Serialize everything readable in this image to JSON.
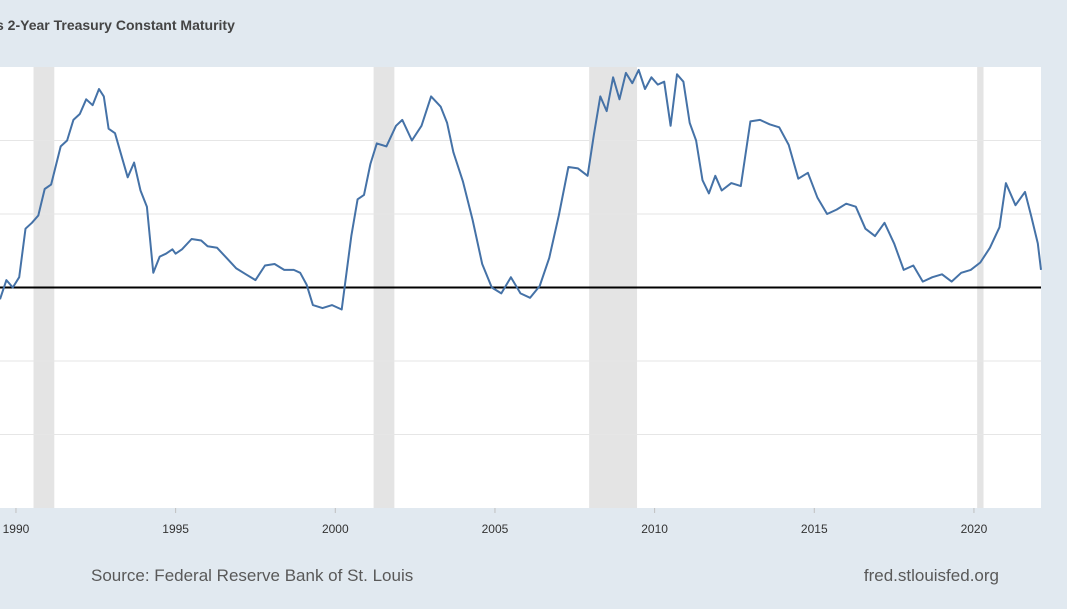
{
  "chart_data": {
    "type": "line",
    "title": "s 2-Year Treasury Constant Maturity",
    "xlabel": "",
    "ylabel": "",
    "x_ticks": [
      "1990",
      "1995",
      "2000",
      "2005",
      "2010",
      "2015",
      "2020"
    ],
    "xlim": [
      1989.5,
      2022.1
    ],
    "ylim": [
      -1.5,
      1.5
    ],
    "y_gridlines": [
      -1.0,
      -0.5,
      0.0,
      0.5,
      1.0
    ],
    "reference_line": 0.0,
    "grid": true,
    "legend": "none",
    "recessions": [
      [
        1990.55,
        1991.2
      ],
      [
        2001.2,
        2001.85
      ],
      [
        2007.95,
        2009.45
      ],
      [
        2020.1,
        2020.3
      ]
    ],
    "series": [
      {
        "color": "#4572a7",
        "x": [
          1989.5,
          1989.7,
          1989.9,
          1990.1,
          1990.3,
          1990.5,
          1990.7,
          1990.9,
          1991.1,
          1991.4,
          1991.6,
          1991.8,
          1992.0,
          1992.2,
          1992.4,
          1992.6,
          1992.75,
          1992.9,
          1993.1,
          1993.3,
          1993.5,
          1993.7,
          1993.9,
          1994.1,
          1994.3,
          1994.5,
          1994.7,
          1994.9,
          1995.0,
          1995.2,
          1995.5,
          1995.8,
          1996.0,
          1996.3,
          1996.6,
          1996.9,
          1997.2,
          1997.5,
          1997.8,
          1998.1,
          1998.4,
          1998.7,
          1998.9,
          1999.1,
          1999.3,
          1999.6,
          1999.9,
          2000.2,
          2000.5,
          2000.7,
          2000.9,
          2001.1,
          2001.3,
          2001.6,
          2001.9,
          2002.1,
          2002.4,
          2002.7,
          2003.0,
          2003.3,
          2003.5,
          2003.7,
          2004.0,
          2004.3,
          2004.6,
          2004.9,
          2005.2,
          2005.5,
          2005.8,
          2006.1,
          2006.4,
          2006.7,
          2007.0,
          2007.3,
          2007.6,
          2007.9,
          2008.1,
          2008.3,
          2008.5,
          2008.7,
          2008.9,
          2009.1,
          2009.3,
          2009.5,
          2009.7,
          2009.9,
          2010.1,
          2010.3,
          2010.5,
          2010.7,
          2010.9,
          2011.1,
          2011.3,
          2011.5,
          2011.7,
          2011.9,
          2012.1,
          2012.4,
          2012.7,
          2013.0,
          2013.3,
          2013.6,
          2013.9,
          2014.2,
          2014.5,
          2014.8,
          2015.1,
          2015.4,
          2015.7,
          2016.0,
          2016.3,
          2016.6,
          2016.9,
          2017.2,
          2017.5,
          2017.8,
          2018.1,
          2018.4,
          2018.7,
          2019.0,
          2019.3,
          2019.6,
          2019.9,
          2020.2,
          2020.5,
          2020.8,
          2021.0,
          2021.3,
          2021.6,
          2021.8,
          2022.0,
          2022.1
        ],
        "values": [
          -0.08,
          0.05,
          0.0,
          0.07,
          0.4,
          0.44,
          0.49,
          0.67,
          0.7,
          0.96,
          1.0,
          1.14,
          1.18,
          1.28,
          1.24,
          1.35,
          1.3,
          1.08,
          1.05,
          0.9,
          0.75,
          0.85,
          0.66,
          0.55,
          0.1,
          0.21,
          0.23,
          0.26,
          0.23,
          0.26,
          0.33,
          0.32,
          0.28,
          0.27,
          0.2,
          0.13,
          0.09,
          0.05,
          0.15,
          0.16,
          0.12,
          0.12,
          0.1,
          0.02,
          -0.12,
          -0.14,
          -0.12,
          -0.15,
          0.35,
          0.6,
          0.63,
          0.84,
          0.98,
          0.96,
          1.1,
          1.14,
          1.0,
          1.1,
          1.3,
          1.23,
          1.12,
          0.92,
          0.72,
          0.46,
          0.16,
          0.0,
          -0.04,
          0.07,
          -0.04,
          -0.07,
          0.01,
          0.2,
          0.49,
          0.82,
          0.81,
          0.76,
          1.04,
          1.3,
          1.2,
          1.43,
          1.28,
          1.46,
          1.39,
          1.48,
          1.35,
          1.43,
          1.38,
          1.4,
          1.1,
          1.45,
          1.4,
          1.12,
          1.0,
          0.73,
          0.64,
          0.76,
          0.66,
          0.71,
          0.69,
          1.13,
          1.14,
          1.11,
          1.09,
          0.97,
          0.74,
          0.78,
          0.61,
          0.5,
          0.53,
          0.57,
          0.55,
          0.4,
          0.35,
          0.44,
          0.3,
          0.12,
          0.15,
          0.04,
          0.07,
          0.09,
          0.04,
          0.1,
          0.12,
          0.17,
          0.27,
          0.41,
          0.71,
          0.56,
          0.65,
          0.48,
          0.3,
          0.12
        ]
      }
    ]
  },
  "footer": {
    "source": "Source: Federal Reserve Bank of St. Louis",
    "url": "fred.stlouisfed.org"
  }
}
